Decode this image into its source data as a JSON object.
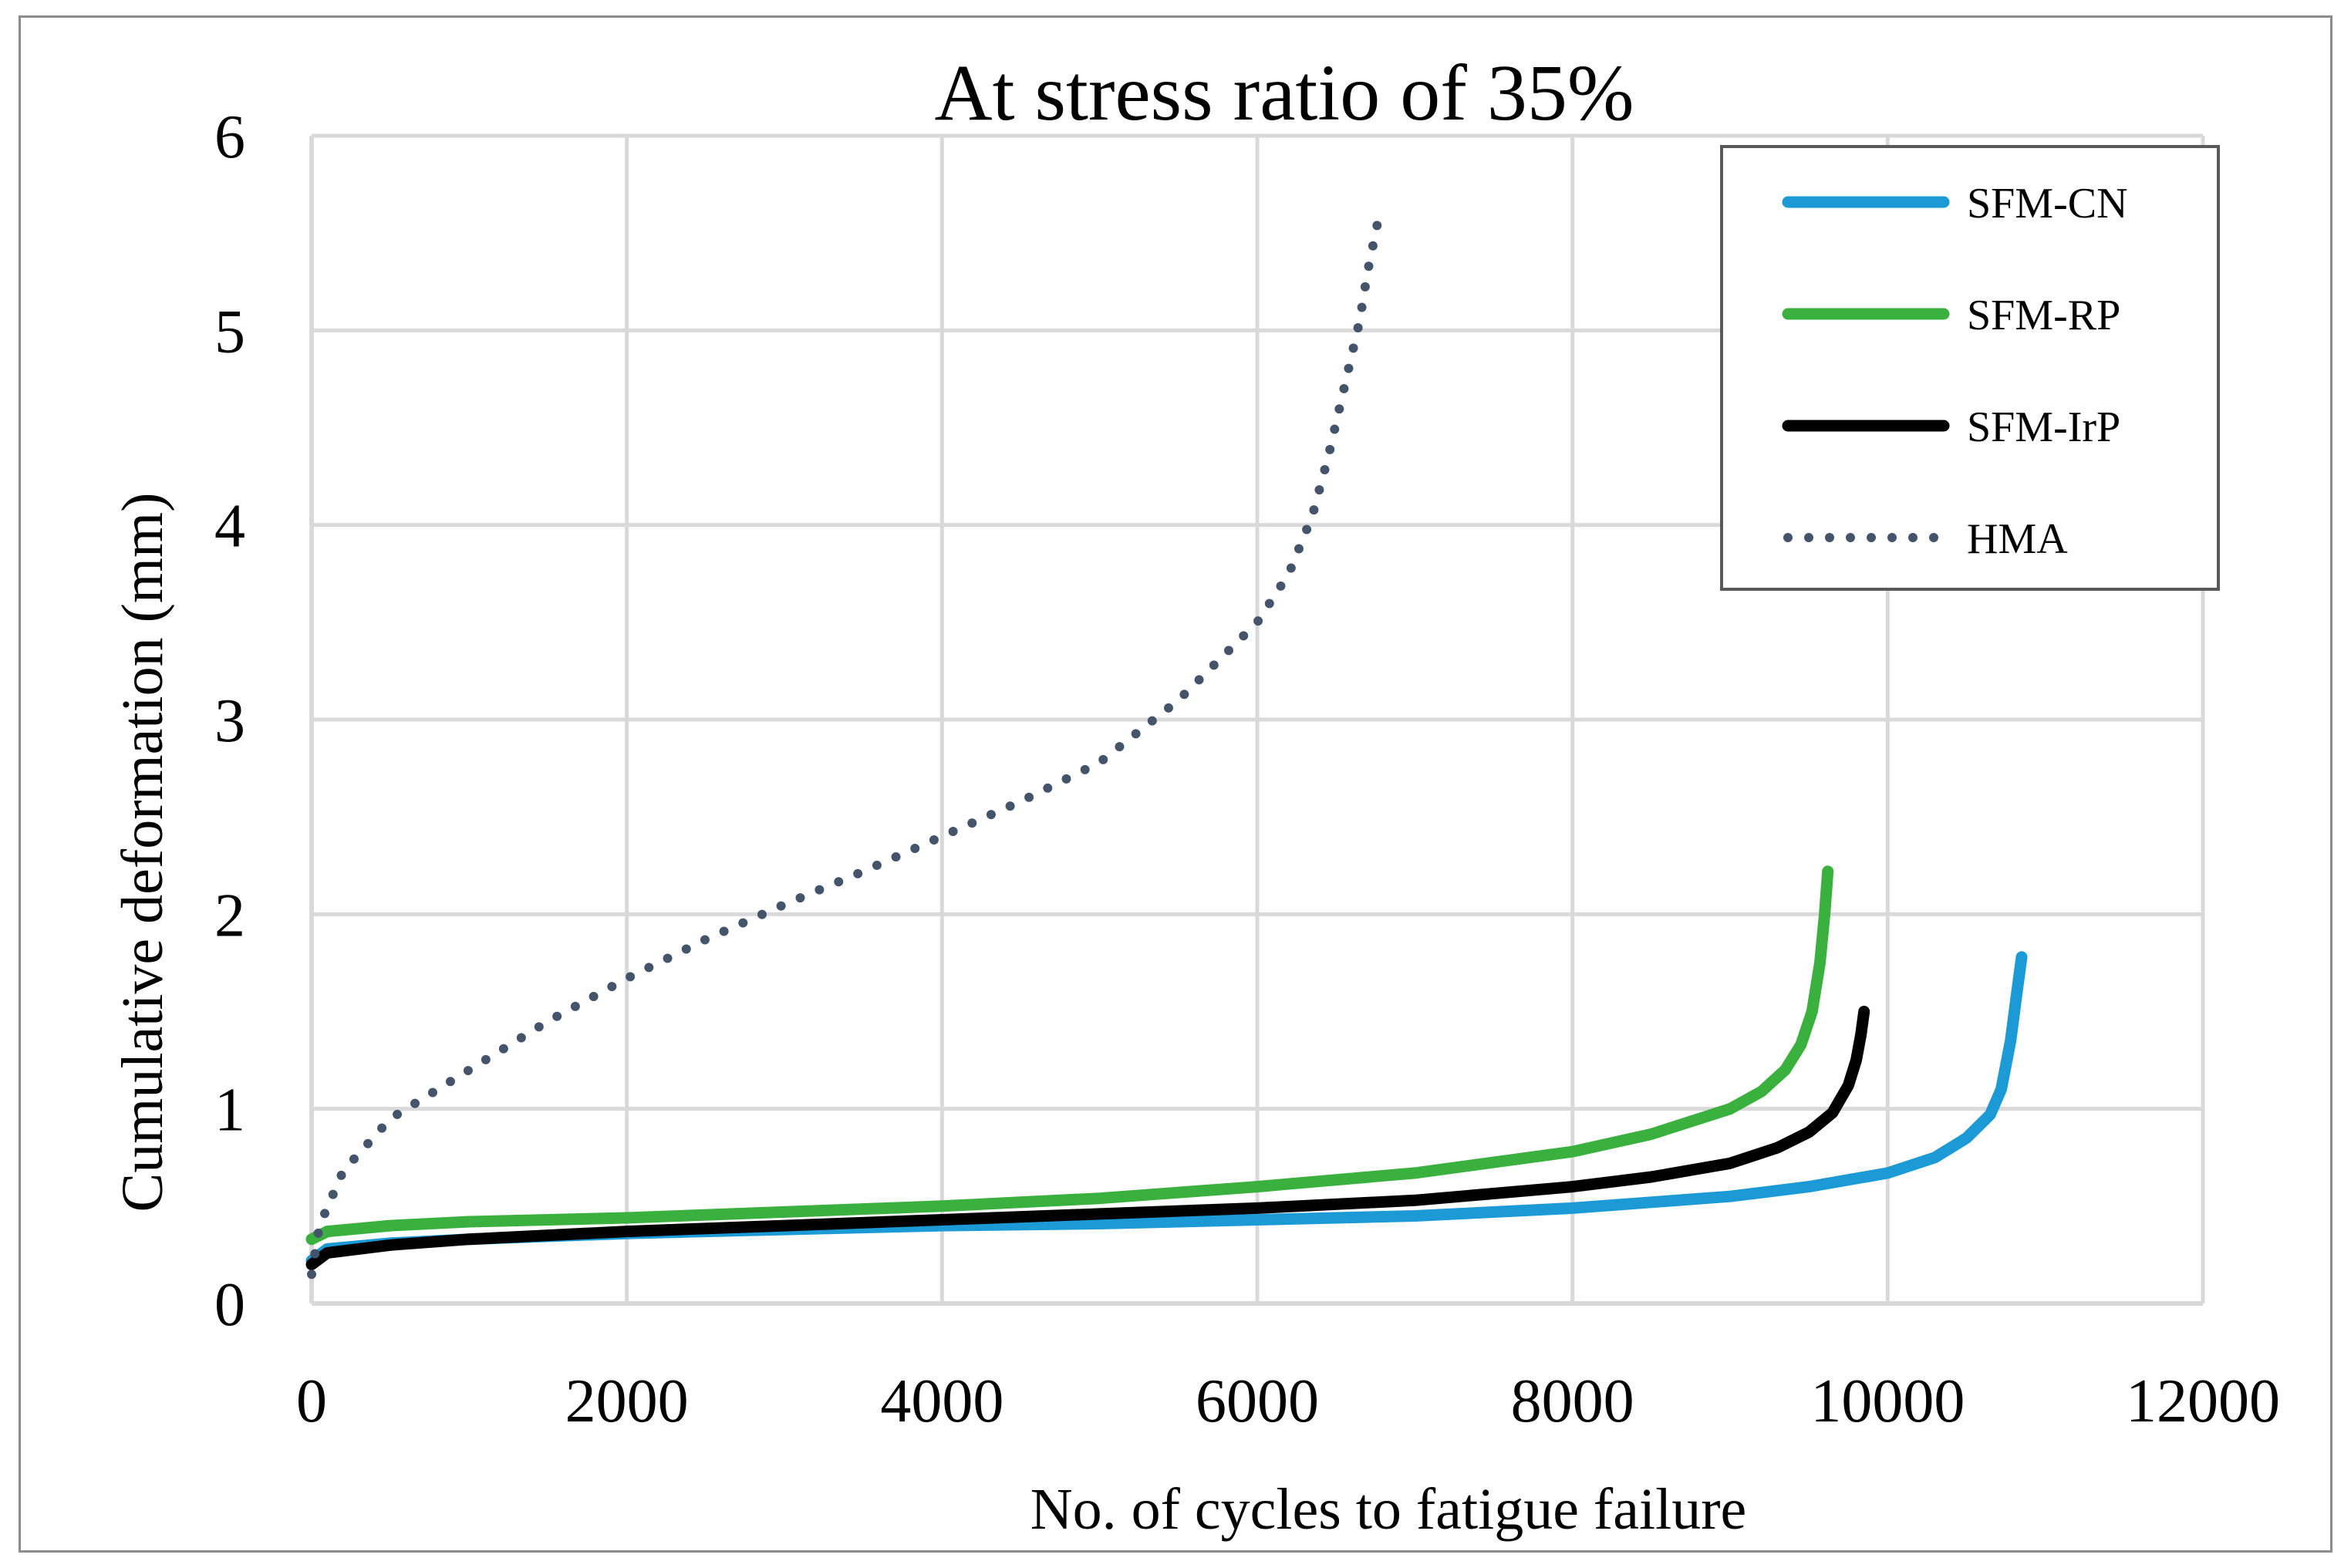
{
  "chart_data": {
    "type": "line",
    "title": "At stress ratio of 35%",
    "xlabel": "No. of cycles to fatigue failure",
    "ylabel": "Cumulative deformation (mm)",
    "xlim": [
      0,
      12000
    ],
    "ylim": [
      0,
      6
    ],
    "xticks": [
      0,
      2000,
      4000,
      6000,
      8000,
      10000,
      12000
    ],
    "yticks": [
      0,
      1,
      2,
      3,
      4,
      5,
      6
    ],
    "grid": true,
    "legend_position": "top-right",
    "series": [
      {
        "name": "SFM-CN",
        "color": "#1b9ad6",
        "style": "solid",
        "x": [
          0,
          100,
          500,
          1000,
          2000,
          3000,
          4000,
          5000,
          6000,
          7000,
          8000,
          9000,
          9500,
          10000,
          10300,
          10500,
          10650,
          10720,
          10780,
          10820,
          10850
        ],
        "y": [
          0.22,
          0.28,
          0.31,
          0.33,
          0.36,
          0.38,
          0.4,
          0.41,
          0.43,
          0.45,
          0.49,
          0.55,
          0.6,
          0.67,
          0.75,
          0.85,
          0.97,
          1.1,
          1.35,
          1.6,
          1.78
        ]
      },
      {
        "name": "SFM-RP",
        "color": "#3ab03e",
        "style": "solid",
        "x": [
          0,
          100,
          500,
          1000,
          2000,
          3000,
          4000,
          5000,
          6000,
          7000,
          8000,
          8500,
          9000,
          9200,
          9350,
          9450,
          9520,
          9570,
          9600,
          9620
        ],
        "y": [
          0.33,
          0.37,
          0.4,
          0.42,
          0.44,
          0.47,
          0.5,
          0.54,
          0.6,
          0.67,
          0.78,
          0.87,
          1.0,
          1.09,
          1.2,
          1.33,
          1.5,
          1.75,
          2.0,
          2.22
        ]
      },
      {
        "name": "SFM-IrP",
        "color": "#000000",
        "style": "solid",
        "x": [
          0,
          100,
          500,
          1000,
          2000,
          3000,
          4000,
          5000,
          6000,
          7000,
          8000,
          8500,
          9000,
          9300,
          9500,
          9650,
          9750,
          9800,
          9830,
          9850
        ],
        "y": [
          0.2,
          0.26,
          0.3,
          0.33,
          0.37,
          0.4,
          0.43,
          0.46,
          0.49,
          0.53,
          0.6,
          0.65,
          0.72,
          0.8,
          0.88,
          0.98,
          1.12,
          1.25,
          1.38,
          1.5
        ]
      },
      {
        "name": "HMA",
        "color": "#44546a",
        "style": "dotted",
        "x": [
          0,
          50,
          200,
          500,
          1000,
          1500,
          2000,
          2500,
          3000,
          3500,
          4000,
          4500,
          5000,
          5500,
          6000,
          6200,
          6350,
          6450,
          6550,
          6650,
          6700,
          6750,
          6780
        ],
        "y": [
          0.15,
          0.4,
          0.68,
          0.95,
          1.2,
          1.45,
          1.67,
          1.87,
          2.05,
          2.22,
          2.4,
          2.58,
          2.78,
          3.1,
          3.5,
          3.75,
          4.05,
          4.35,
          4.7,
          5.05,
          5.3,
          5.5,
          5.62
        ]
      }
    ]
  }
}
